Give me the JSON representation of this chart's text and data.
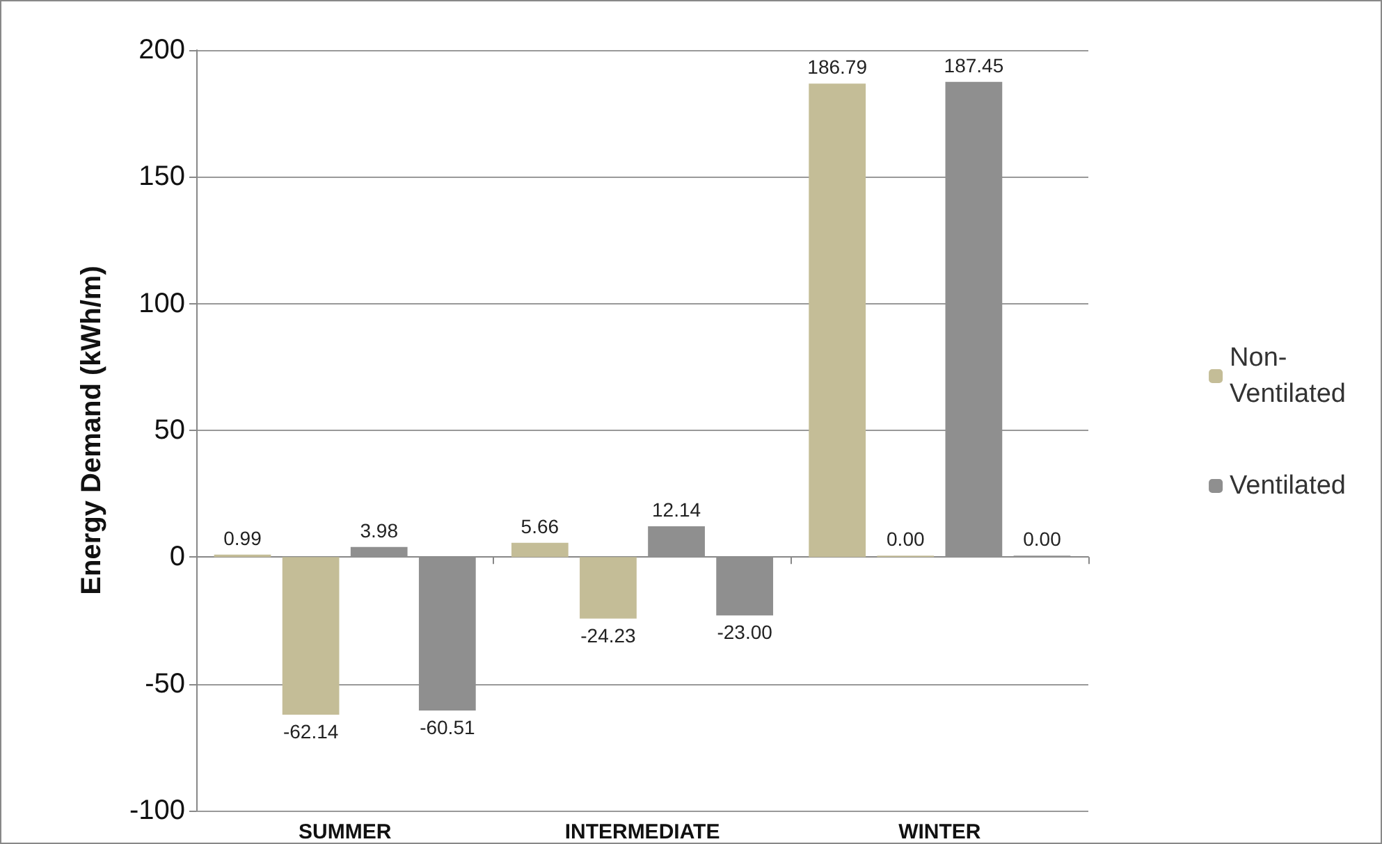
{
  "chart_data": {
    "type": "bar",
    "ylabel": "Energy Demand (kWh/m)",
    "categories": [
      "SUMMER",
      "INTERMEDIATE",
      "WINTER"
    ],
    "series": [
      {
        "name": "Non-Ventilated",
        "color": "#c4bd97",
        "values": [
          0.99,
          5.66,
          186.79
        ],
        "value_labels": [
          "0.99",
          "5.66",
          "186.79"
        ]
      },
      {
        "color": "#c4bd97",
        "values": [
          -62.14,
          -24.23,
          0
        ],
        "value_labels": [
          "-62.14",
          "-24.23",
          "0.00"
        ]
      },
      {
        "name": "Ventilated",
        "color": "#8f8f8f",
        "values": [
          3.98,
          12.14,
          187.45
        ],
        "value_labels": [
          "3.98",
          "12.14",
          "187.45"
        ]
      },
      {
        "color": "#8f8f8f",
        "values": [
          -60.51,
          -23.0,
          0
        ],
        "value_labels": [
          "-60.51",
          "-23.00",
          "0.00"
        ]
      }
    ],
    "ylim": [
      -100,
      200
    ],
    "yticks": [
      -100,
      -50,
      0,
      50,
      100,
      150,
      200
    ],
    "grid": "y",
    "legend": "right"
  }
}
